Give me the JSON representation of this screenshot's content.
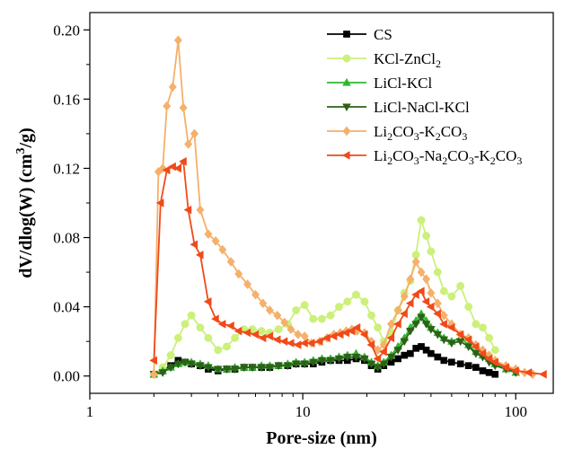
{
  "chart_data": {
    "type": "line",
    "xlabel": "Pore-size (nm)",
    "ylabel_parts": [
      "dV/dlog(W)  (cm",
      "3",
      "/g)"
    ],
    "xscale": "log",
    "xlim": [
      1,
      150
    ],
    "ylim": [
      -0.01,
      0.21
    ],
    "x_ticks": [
      1,
      10,
      100
    ],
    "x_tick_labels": [
      "1",
      "10",
      "100"
    ],
    "y_ticks": [
      0.0,
      0.04,
      0.08,
      0.12,
      0.16,
      0.2
    ],
    "y_tick_labels": [
      "0.00",
      "0.04",
      "0.08",
      "0.12",
      "0.16",
      "0.20"
    ],
    "grid": false,
    "legend_position": "top-right",
    "series": [
      {
        "name": "CS",
        "name_parts": [
          [
            "CS",
            ""
          ]
        ],
        "color": "#000000",
        "marker": "square",
        "x": [
          2.0,
          2.2,
          2.4,
          2.6,
          2.8,
          3.0,
          3.3,
          3.6,
          4.0,
          4.4,
          4.8,
          5.3,
          5.8,
          6.4,
          7.0,
          7.7,
          8.5,
          9.3,
          10.2,
          11.2,
          12.3,
          13.5,
          14.8,
          16.2,
          17.8,
          19.5,
          21.0,
          22.5,
          24.0,
          26.0,
          28.0,
          30.0,
          32.0,
          34.0,
          36.0,
          38.0,
          40.0,
          43.0,
          46.0,
          50.0,
          55.0,
          60.0,
          65.0,
          70.0,
          75.0,
          80.0
        ],
        "y": [
          0.001,
          0.003,
          0.006,
          0.009,
          0.008,
          0.007,
          0.006,
          0.004,
          0.003,
          0.004,
          0.004,
          0.005,
          0.005,
          0.005,
          0.005,
          0.006,
          0.006,
          0.007,
          0.007,
          0.007,
          0.008,
          0.009,
          0.009,
          0.009,
          0.01,
          0.009,
          0.006,
          0.004,
          0.006,
          0.008,
          0.01,
          0.012,
          0.013,
          0.016,
          0.017,
          0.015,
          0.013,
          0.011,
          0.009,
          0.008,
          0.007,
          0.006,
          0.005,
          0.003,
          0.002,
          0.001
        ]
      },
      {
        "name": "KCl-ZnCl2",
        "name_parts": [
          [
            "KCl-ZnCl",
            ""
          ],
          [
            "2",
            "sub"
          ]
        ],
        "color": "#ccf07a",
        "marker": "circle",
        "x": [
          2.0,
          2.2,
          2.4,
          2.6,
          2.8,
          3.0,
          3.3,
          3.6,
          4.0,
          4.4,
          4.8,
          5.3,
          5.8,
          6.4,
          7.0,
          7.7,
          8.5,
          9.3,
          10.2,
          11.2,
          12.3,
          13.5,
          14.8,
          16.2,
          17.8,
          19.5,
          21.0,
          22.5,
          24.0,
          26.0,
          28.0,
          30.0,
          32.0,
          34.0,
          36.0,
          38.0,
          40.0,
          43.0,
          46.0,
          50.0,
          55.0,
          60.0,
          65.0,
          70.0,
          75.0,
          80.0
        ],
        "y": [
          0.001,
          0.005,
          0.012,
          0.022,
          0.03,
          0.035,
          0.028,
          0.022,
          0.015,
          0.017,
          0.022,
          0.027,
          0.027,
          0.026,
          0.025,
          0.027,
          0.03,
          0.038,
          0.041,
          0.033,
          0.033,
          0.035,
          0.04,
          0.043,
          0.047,
          0.043,
          0.035,
          0.028,
          0.02,
          0.025,
          0.038,
          0.048,
          0.055,
          0.07,
          0.09,
          0.081,
          0.072,
          0.06,
          0.049,
          0.046,
          0.052,
          0.04,
          0.03,
          0.028,
          0.022,
          0.015
        ]
      },
      {
        "name": "LiCl-KCl",
        "name_parts": [
          [
            "LiCl-KCl",
            ""
          ]
        ],
        "color": "#2eb82e",
        "marker": "triangle-up",
        "x": [
          2.0,
          2.2,
          2.4,
          2.6,
          2.8,
          3.0,
          3.3,
          3.6,
          4.0,
          4.4,
          4.8,
          5.3,
          5.8,
          6.4,
          7.0,
          7.7,
          8.5,
          9.3,
          10.2,
          11.2,
          12.3,
          13.5,
          14.8,
          16.2,
          17.8,
          19.5,
          21.0,
          22.5,
          24.0,
          26.0,
          28.0,
          30.0,
          32.0,
          34.0,
          36.0,
          38.0,
          40.0,
          43.0,
          46.0,
          50.0,
          55.0,
          60.0,
          65.0,
          70.0,
          75.0,
          80.0,
          90.0,
          100.0
        ],
        "y": [
          0.001,
          0.003,
          0.005,
          0.007,
          0.008,
          0.008,
          0.007,
          0.006,
          0.004,
          0.004,
          0.005,
          0.005,
          0.005,
          0.006,
          0.006,
          0.006,
          0.007,
          0.008,
          0.008,
          0.009,
          0.01,
          0.01,
          0.011,
          0.012,
          0.013,
          0.011,
          0.008,
          0.006,
          0.008,
          0.012,
          0.017,
          0.022,
          0.028,
          0.032,
          0.036,
          0.032,
          0.028,
          0.025,
          0.022,
          0.02,
          0.022,
          0.018,
          0.014,
          0.012,
          0.01,
          0.007,
          0.004,
          0.002
        ]
      },
      {
        "name": "LiCl-NaCl-KCl",
        "name_parts": [
          [
            "LiCl-NaCl-KCl",
            ""
          ]
        ],
        "color": "#2d6118",
        "marker": "triangle-down",
        "x": [
          2.0,
          2.2,
          2.4,
          2.6,
          2.8,
          3.0,
          3.3,
          3.6,
          4.0,
          4.4,
          4.8,
          5.3,
          5.8,
          6.4,
          7.0,
          7.7,
          8.5,
          9.3,
          10.2,
          11.2,
          12.3,
          13.5,
          14.8,
          16.2,
          17.8,
          19.5,
          21.0,
          22.5,
          24.0,
          26.0,
          28.0,
          30.0,
          32.0,
          34.0,
          36.0,
          38.0,
          40.0,
          43.0,
          46.0,
          50.0,
          55.0,
          60.0,
          65.0,
          70.0,
          75.0,
          80.0,
          90.0,
          100.0
        ],
        "y": [
          0.001,
          0.002,
          0.005,
          0.007,
          0.008,
          0.007,
          0.006,
          0.005,
          0.004,
          0.004,
          0.004,
          0.005,
          0.005,
          0.005,
          0.005,
          0.006,
          0.006,
          0.007,
          0.007,
          0.008,
          0.009,
          0.009,
          0.01,
          0.011,
          0.011,
          0.01,
          0.007,
          0.005,
          0.007,
          0.011,
          0.015,
          0.02,
          0.026,
          0.03,
          0.034,
          0.03,
          0.027,
          0.024,
          0.021,
          0.019,
          0.02,
          0.017,
          0.013,
          0.011,
          0.008,
          0.006,
          0.004,
          0.002
        ]
      },
      {
        "name": "Li2CO3-K2CO3",
        "name_parts": [
          [
            "Li",
            ""
          ],
          [
            "2",
            "sub"
          ],
          [
            "CO",
            ""
          ],
          [
            "3",
            "sub"
          ],
          [
            "-K",
            ""
          ],
          [
            "2",
            "sub"
          ],
          [
            "CO",
            ""
          ],
          [
            "3",
            "sub"
          ]
        ],
        "color": "#f5b06a",
        "marker": "diamond",
        "x": [
          2.0,
          2.1,
          2.2,
          2.3,
          2.45,
          2.6,
          2.75,
          2.9,
          3.1,
          3.3,
          3.6,
          3.9,
          4.2,
          4.6,
          5.0,
          5.5,
          6.0,
          6.5,
          7.0,
          7.6,
          8.2,
          8.8,
          9.5,
          10.2,
          11.0,
          12.0,
          13.0,
          14.0,
          15.0,
          16.0,
          17.0,
          18.0,
          19.5,
          21.0,
          22.5,
          24.0,
          26.0,
          28.0,
          30.0,
          32.0,
          34.0,
          36.0,
          38.0,
          40.0,
          43.0,
          46.0,
          50.0,
          55.0,
          60.0,
          65.0,
          70.0,
          75.0,
          80.0,
          90.0,
          100.0,
          110.0,
          120.0
        ],
        "y": [
          0.001,
          0.118,
          0.12,
          0.156,
          0.167,
          0.194,
          0.155,
          0.134,
          0.14,
          0.096,
          0.082,
          0.078,
          0.073,
          0.066,
          0.059,
          0.053,
          0.047,
          0.042,
          0.038,
          0.035,
          0.031,
          0.027,
          0.024,
          0.023,
          0.019,
          0.02,
          0.022,
          0.024,
          0.025,
          0.026,
          0.027,
          0.026,
          0.025,
          0.02,
          0.015,
          0.018,
          0.03,
          0.038,
          0.046,
          0.056,
          0.066,
          0.06,
          0.056,
          0.048,
          0.042,
          0.035,
          0.03,
          0.024,
          0.022,
          0.018,
          0.015,
          0.012,
          0.009,
          0.006,
          0.004,
          0.002,
          0.001
        ]
      },
      {
        "name": "Li2CO3-Na2CO3-K2CO3",
        "name_parts": [
          [
            "Li",
            ""
          ],
          [
            "2",
            "sub"
          ],
          [
            "CO",
            ""
          ],
          [
            "3",
            "sub"
          ],
          [
            "-Na",
            ""
          ],
          [
            "2",
            "sub"
          ],
          [
            "CO",
            ""
          ],
          [
            "3",
            "sub"
          ],
          [
            "-K",
            ""
          ],
          [
            "2",
            "sub"
          ],
          [
            "CO",
            ""
          ],
          [
            "3",
            "sub"
          ]
        ],
        "color": "#f04a1a",
        "marker": "triangle-left",
        "x": [
          2.0,
          2.15,
          2.3,
          2.45,
          2.6,
          2.75,
          2.9,
          3.1,
          3.3,
          3.6,
          3.9,
          4.2,
          4.6,
          5.0,
          5.5,
          6.0,
          6.5,
          7.0,
          7.6,
          8.2,
          8.8,
          9.5,
          10.2,
          11.0,
          12.0,
          13.0,
          14.0,
          15.0,
          16.0,
          17.0,
          18.0,
          19.5,
          21.0,
          22.5,
          24.0,
          26.0,
          28.0,
          30.0,
          32.0,
          34.0,
          36.0,
          38.0,
          40.0,
          43.0,
          46.0,
          50.0,
          55.0,
          60.0,
          65.0,
          70.0,
          75.0,
          80.0,
          90.0,
          100.0,
          115.0,
          135.0
        ],
        "y": [
          0.009,
          0.1,
          0.119,
          0.121,
          0.12,
          0.124,
          0.096,
          0.076,
          0.07,
          0.043,
          0.033,
          0.03,
          0.029,
          0.026,
          0.025,
          0.024,
          0.022,
          0.023,
          0.021,
          0.02,
          0.019,
          0.018,
          0.019,
          0.019,
          0.02,
          0.022,
          0.023,
          0.024,
          0.025,
          0.026,
          0.028,
          0.024,
          0.018,
          0.01,
          0.014,
          0.022,
          0.03,
          0.036,
          0.042,
          0.047,
          0.049,
          0.043,
          0.04,
          0.036,
          0.03,
          0.028,
          0.024,
          0.021,
          0.017,
          0.013,
          0.01,
          0.008,
          0.005,
          0.003,
          0.002,
          0.001
        ]
      }
    ]
  }
}
